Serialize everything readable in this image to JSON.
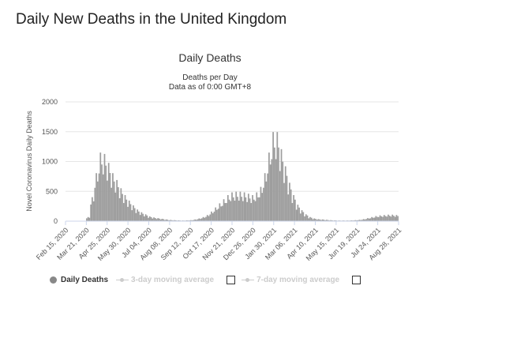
{
  "page": {
    "title": "Daily New Deaths in the United Kingdom"
  },
  "legend": {
    "daily_deaths": "Daily Deaths",
    "ma3": "3-day moving average",
    "ma7": "7-day moving average"
  },
  "colors": {
    "bars": "#9e9e9e",
    "grid": "#e6e6e6",
    "legend_disabled": "#cccccc"
  },
  "chart_data": {
    "type": "bar",
    "title": "Daily Deaths",
    "subtitle": [
      "Deaths per Day",
      "Data as of 0:00 GMT+8"
    ],
    "xlabel": "",
    "ylabel": "Novel Coronavirus Daily Deaths",
    "ylim": [
      0,
      2000
    ],
    "yticks": [
      0,
      500,
      1000,
      1500,
      2000
    ],
    "xtick_labels": [
      "Feb 15, 2020",
      "Mar 21, 2020",
      "Apr 25, 2020",
      "May 30, 2020",
      "Jul 04, 2020",
      "Aug 08, 2020",
      "Sep 12, 2020",
      "Oct 17, 2020",
      "Nov 21, 2020",
      "Dec 26, 2020",
      "Jan 30, 2021",
      "Mar 06, 2021",
      "Apr 10, 2021",
      "May 15, 2021",
      "Jun 19, 2021",
      "Jul 24, 2021",
      "Aug 28, 2021"
    ],
    "weekly": {
      "start": "Feb 15, 2020",
      "step_days": 7,
      "values": [
        0,
        0,
        0,
        0,
        5,
        60,
        350,
        700,
        1000,
        980,
        850,
        700,
        600,
        480,
        380,
        300,
        230,
        170,
        130,
        100,
        70,
        55,
        45,
        35,
        25,
        18,
        15,
        12,
        10,
        12,
        15,
        25,
        40,
        60,
        90,
        140,
        200,
        260,
        320,
        380,
        420,
        430,
        430,
        420,
        400,
        380,
        420,
        500,
        700,
        1000,
        1300,
        1300,
        1050,
        800,
        560,
        380,
        240,
        160,
        100,
        60,
        40,
        30,
        25,
        20,
        15,
        12,
        10,
        10,
        10,
        12,
        15,
        20,
        30,
        45,
        60,
        75,
        85,
        90,
        95,
        95,
        90
      ]
    }
  }
}
